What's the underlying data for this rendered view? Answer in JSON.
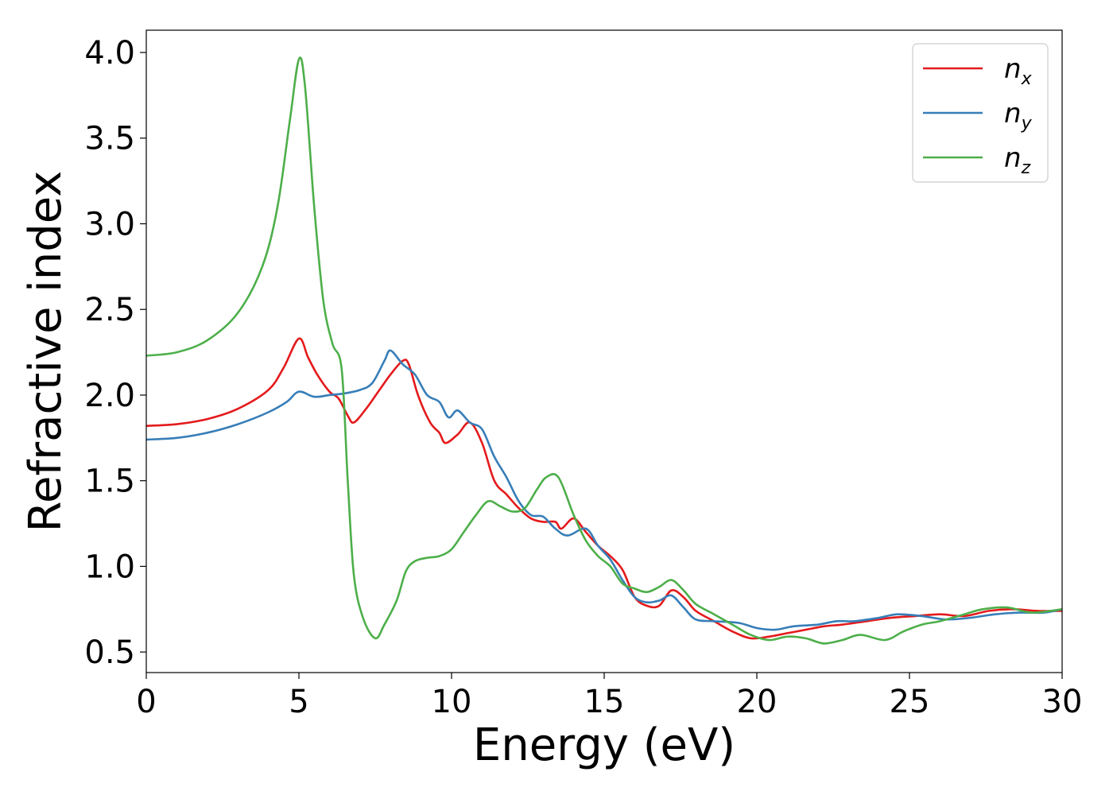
{
  "chart_data": {
    "type": "line",
    "xlabel": "Energy (eV)",
    "ylabel": "Refractive index",
    "xlim": [
      0,
      30
    ],
    "ylim": [
      0.38,
      4.13
    ],
    "x_ticks": [
      0,
      5,
      10,
      15,
      20,
      25,
      30
    ],
    "x_tick_labels": [
      "0",
      "5",
      "10",
      "15",
      "20",
      "25",
      "30"
    ],
    "y_ticks": [
      0.5,
      1.0,
      1.5,
      2.0,
      2.5,
      3.0,
      3.5,
      4.0
    ],
    "y_tick_labels": [
      "0.5",
      "1.0",
      "1.5",
      "2.0",
      "2.5",
      "3.0",
      "3.5",
      "4.0"
    ],
    "grid": false,
    "legend_position": "top-right",
    "series": [
      {
        "name": "n_x",
        "label_base": "n",
        "label_sub": "x",
        "color": "#e41a1c",
        "points": [
          [
            0,
            1.82
          ],
          [
            1,
            1.83
          ],
          [
            2,
            1.86
          ],
          [
            3,
            1.92
          ],
          [
            4,
            2.03
          ],
          [
            4.5,
            2.16
          ],
          [
            5,
            2.33
          ],
          [
            5.3,
            2.22
          ],
          [
            5.6,
            2.12
          ],
          [
            6,
            2.02
          ],
          [
            6.3,
            1.98
          ],
          [
            6.6,
            1.88
          ],
          [
            6.8,
            1.84
          ],
          [
            7.2,
            1.92
          ],
          [
            7.6,
            2.02
          ],
          [
            8,
            2.12
          ],
          [
            8.4,
            2.2
          ],
          [
            8.6,
            2.18
          ],
          [
            8.9,
            2.0
          ],
          [
            9.3,
            1.84
          ],
          [
            9.6,
            1.78
          ],
          [
            9.8,
            1.72
          ],
          [
            10.2,
            1.77
          ],
          [
            10.6,
            1.84
          ],
          [
            11,
            1.72
          ],
          [
            11.4,
            1.5
          ],
          [
            11.8,
            1.42
          ],
          [
            12.2,
            1.34
          ],
          [
            12.6,
            1.28
          ],
          [
            13,
            1.26
          ],
          [
            13.4,
            1.26
          ],
          [
            13.6,
            1.22
          ],
          [
            14,
            1.28
          ],
          [
            14.4,
            1.2
          ],
          [
            14.8,
            1.12
          ],
          [
            15.2,
            1.06
          ],
          [
            15.6,
            0.98
          ],
          [
            16,
            0.82
          ],
          [
            16.4,
            0.77
          ],
          [
            16.8,
            0.77
          ],
          [
            17.2,
            0.86
          ],
          [
            17.6,
            0.82
          ],
          [
            18,
            0.74
          ],
          [
            18.6,
            0.68
          ],
          [
            19.2,
            0.62
          ],
          [
            19.8,
            0.58
          ],
          [
            20.4,
            0.59
          ],
          [
            21,
            0.61
          ],
          [
            21.6,
            0.63
          ],
          [
            22.2,
            0.65
          ],
          [
            22.8,
            0.66
          ],
          [
            23.6,
            0.68
          ],
          [
            24.4,
            0.7
          ],
          [
            25.2,
            0.71
          ],
          [
            26,
            0.72
          ],
          [
            26.8,
            0.71
          ],
          [
            27.6,
            0.74
          ],
          [
            28.4,
            0.75
          ],
          [
            29.2,
            0.74
          ],
          [
            30,
            0.74
          ]
        ]
      },
      {
        "name": "n_y",
        "label_base": "n",
        "label_sub": "y",
        "color": "#377eb8",
        "points": [
          [
            0,
            1.74
          ],
          [
            1,
            1.75
          ],
          [
            2,
            1.78
          ],
          [
            3,
            1.83
          ],
          [
            4,
            1.9
          ],
          [
            4.6,
            1.96
          ],
          [
            5,
            2.02
          ],
          [
            5.5,
            1.99
          ],
          [
            6,
            2.0
          ],
          [
            6.5,
            2.01
          ],
          [
            7,
            2.03
          ],
          [
            7.4,
            2.07
          ],
          [
            7.8,
            2.2
          ],
          [
            8,
            2.26
          ],
          [
            8.4,
            2.18
          ],
          [
            8.8,
            2.12
          ],
          [
            9.2,
            2.0
          ],
          [
            9.6,
            1.96
          ],
          [
            9.9,
            1.87
          ],
          [
            10.2,
            1.91
          ],
          [
            10.6,
            1.84
          ],
          [
            11,
            1.8
          ],
          [
            11.4,
            1.64
          ],
          [
            11.8,
            1.52
          ],
          [
            12.2,
            1.38
          ],
          [
            12.6,
            1.3
          ],
          [
            13,
            1.29
          ],
          [
            13.4,
            1.22
          ],
          [
            13.8,
            1.18
          ],
          [
            14.4,
            1.22
          ],
          [
            14.8,
            1.12
          ],
          [
            15.2,
            1.04
          ],
          [
            15.6,
            0.92
          ],
          [
            16,
            0.82
          ],
          [
            16.4,
            0.79
          ],
          [
            16.8,
            0.8
          ],
          [
            17.2,
            0.83
          ],
          [
            17.6,
            0.76
          ],
          [
            18,
            0.69
          ],
          [
            18.6,
            0.68
          ],
          [
            19.4,
            0.67
          ],
          [
            20,
            0.64
          ],
          [
            20.6,
            0.63
          ],
          [
            21.2,
            0.65
          ],
          [
            22,
            0.66
          ],
          [
            22.6,
            0.68
          ],
          [
            23.2,
            0.68
          ],
          [
            24,
            0.7
          ],
          [
            24.6,
            0.72
          ],
          [
            25.4,
            0.71
          ],
          [
            26.2,
            0.69
          ],
          [
            27,
            0.7
          ],
          [
            27.8,
            0.72
          ],
          [
            28.6,
            0.73
          ],
          [
            29.4,
            0.73
          ],
          [
            30,
            0.75
          ]
        ]
      },
      {
        "name": "n_z",
        "label_base": "n",
        "label_sub": "z",
        "color": "#4daf4a",
        "points": [
          [
            0,
            2.23
          ],
          [
            1,
            2.25
          ],
          [
            2,
            2.32
          ],
          [
            3,
            2.48
          ],
          [
            3.8,
            2.75
          ],
          [
            4.3,
            3.1
          ],
          [
            4.7,
            3.6
          ],
          [
            5,
            3.96
          ],
          [
            5.2,
            3.8
          ],
          [
            5.5,
            3.1
          ],
          [
            5.8,
            2.55
          ],
          [
            6.1,
            2.3
          ],
          [
            6.4,
            2.15
          ],
          [
            6.6,
            1.5
          ],
          [
            6.8,
            0.95
          ],
          [
            7.1,
            0.7
          ],
          [
            7.5,
            0.58
          ],
          [
            7.8,
            0.66
          ],
          [
            8.2,
            0.8
          ],
          [
            8.5,
            0.97
          ],
          [
            8.8,
            1.03
          ],
          [
            9.2,
            1.05
          ],
          [
            9.6,
            1.06
          ],
          [
            10,
            1.1
          ],
          [
            10.4,
            1.2
          ],
          [
            10.8,
            1.3
          ],
          [
            11.2,
            1.38
          ],
          [
            11.6,
            1.35
          ],
          [
            12,
            1.32
          ],
          [
            12.4,
            1.34
          ],
          [
            12.8,
            1.45
          ],
          [
            13.1,
            1.52
          ],
          [
            13.5,
            1.52
          ],
          [
            14,
            1.3
          ],
          [
            14.4,
            1.15
          ],
          [
            14.8,
            1.06
          ],
          [
            15.2,
            1.0
          ],
          [
            15.6,
            0.9
          ],
          [
            16,
            0.87
          ],
          [
            16.4,
            0.85
          ],
          [
            16.8,
            0.88
          ],
          [
            17.2,
            0.92
          ],
          [
            17.6,
            0.86
          ],
          [
            18,
            0.78
          ],
          [
            18.6,
            0.72
          ],
          [
            19.2,
            0.66
          ],
          [
            19.8,
            0.6
          ],
          [
            20.4,
            0.57
          ],
          [
            21,
            0.59
          ],
          [
            21.6,
            0.58
          ],
          [
            22.2,
            0.55
          ],
          [
            22.8,
            0.57
          ],
          [
            23.4,
            0.6
          ],
          [
            24.2,
            0.57
          ],
          [
            24.8,
            0.62
          ],
          [
            25.4,
            0.66
          ],
          [
            26,
            0.68
          ],
          [
            26.8,
            0.72
          ],
          [
            27.4,
            0.75
          ],
          [
            28.2,
            0.76
          ],
          [
            29,
            0.73
          ],
          [
            30,
            0.75
          ]
        ]
      }
    ]
  }
}
